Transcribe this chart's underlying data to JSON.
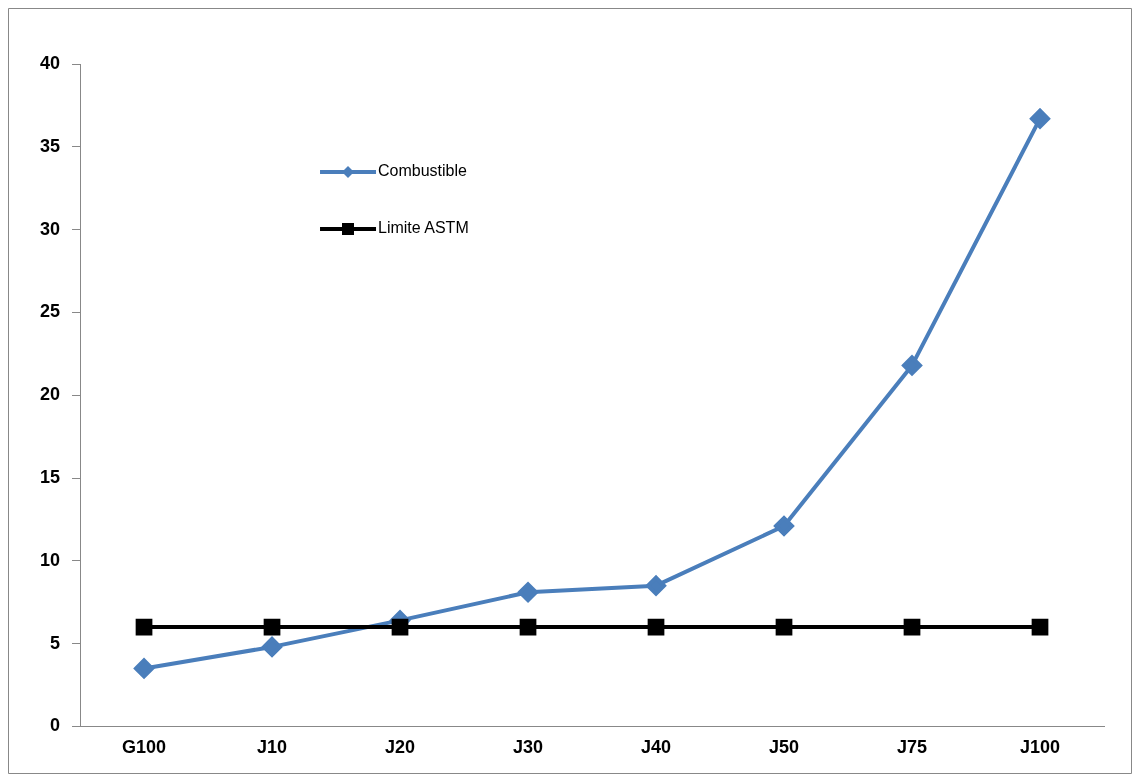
{
  "chart_data": {
    "type": "line",
    "categories": [
      "G100",
      "J10",
      "J20",
      "J30",
      "J40",
      "J50",
      "J75",
      "J100"
    ],
    "series": [
      {
        "name": "Combustible",
        "color": "#4a7ebb",
        "marker": "diamond",
        "values": [
          3.5,
          4.8,
          6.4,
          8.1,
          8.5,
          12.1,
          21.8,
          36.7
        ]
      },
      {
        "name": "Limite ASTM",
        "color": "#000000",
        "marker": "square",
        "values": [
          6,
          6,
          6,
          6,
          6,
          6,
          6,
          6
        ]
      }
    ],
    "ylim": [
      0,
      40
    ],
    "yticks": [
      0,
      5,
      10,
      15,
      20,
      25,
      30,
      35,
      40
    ],
    "grid": false,
    "legend": "top left"
  }
}
